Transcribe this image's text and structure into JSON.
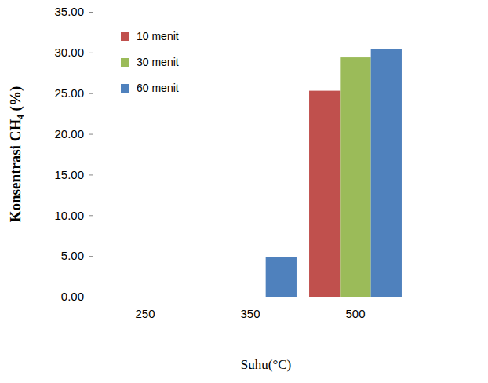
{
  "chart_data": {
    "type": "bar",
    "x_label": "Suhu(°C)",
    "y_label": "Konsentrasi CH₄ (%)",
    "categories": [
      "250",
      "350",
      "500"
    ],
    "series": [
      {
        "name": "10 menit",
        "color": "#c0504d",
        "values": [
          0,
          0,
          25.3
        ]
      },
      {
        "name": "30 menit",
        "color": "#9bbb59",
        "values": [
          0,
          0,
          29.4
        ]
      },
      {
        "name": "60 menit",
        "color": "#4f81bd",
        "values": [
          0,
          4.9,
          30.4
        ]
      }
    ],
    "ylim": [
      0,
      35
    ],
    "yticks": [
      {
        "value": 0,
        "label": "0.00"
      },
      {
        "value": 5,
        "label": "5.00"
      },
      {
        "value": 10,
        "label": "10.00"
      },
      {
        "value": 15,
        "label": "15.00"
      },
      {
        "value": 20,
        "label": "20.00"
      },
      {
        "value": 25,
        "label": "25.00"
      },
      {
        "value": 30,
        "label": "30.00"
      },
      {
        "value": 35,
        "label": "35.00"
      }
    ],
    "grid": false,
    "legend": "upper left"
  }
}
